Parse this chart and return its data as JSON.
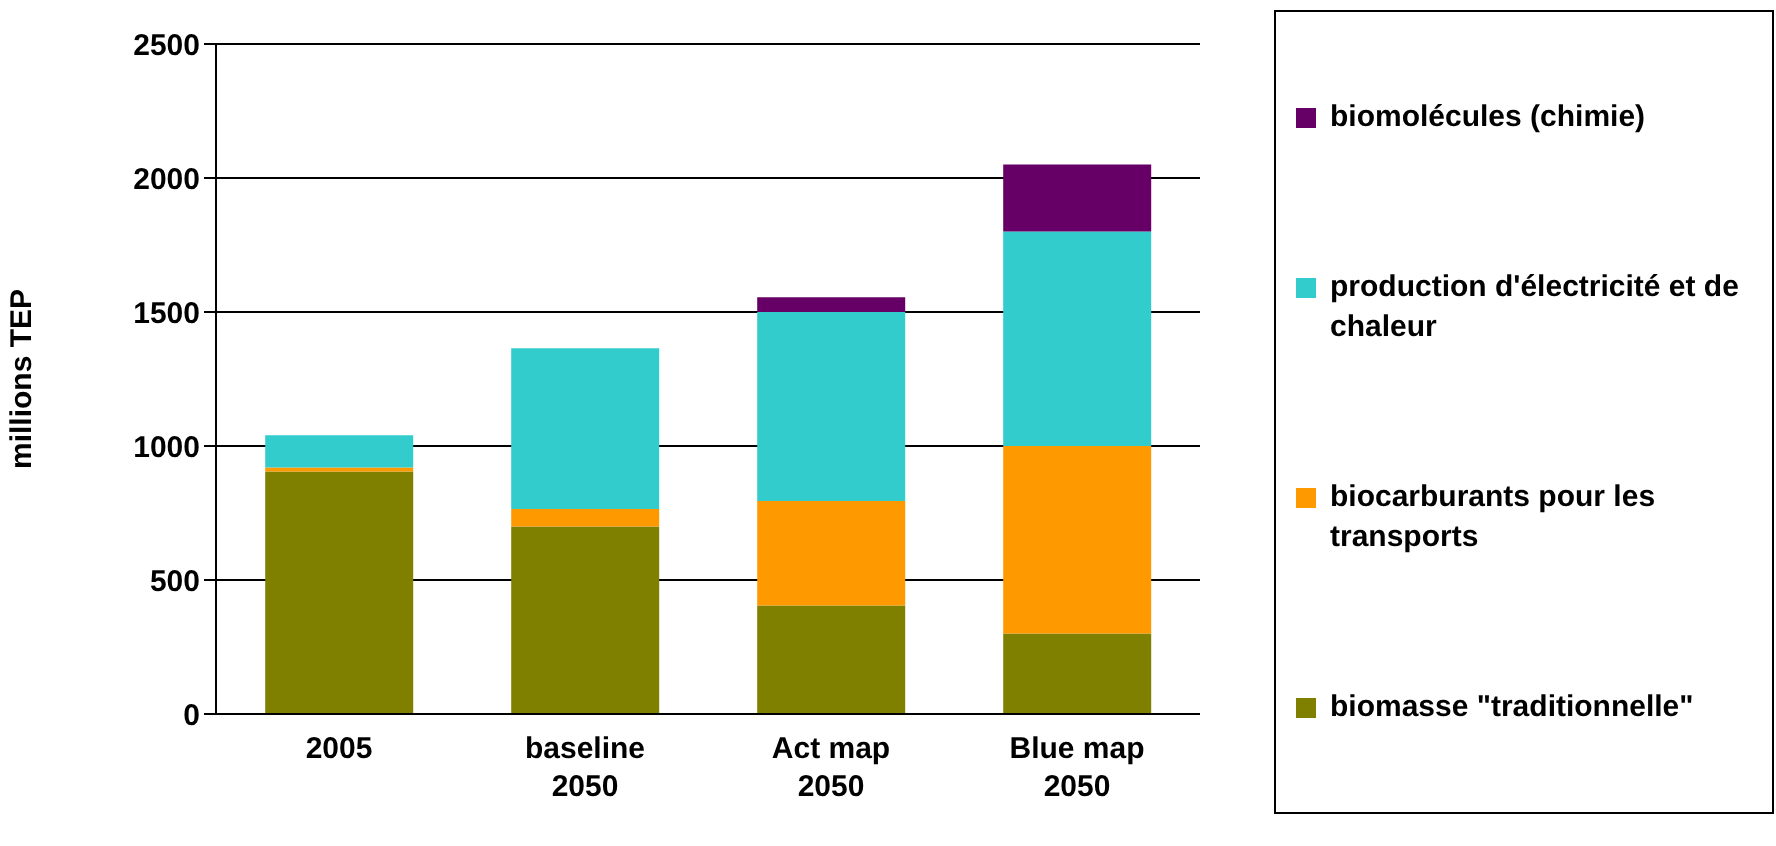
{
  "chart_data": {
    "type": "bar",
    "stacked": true,
    "ylabel": "millions TEP",
    "categories": [
      "2005",
      "baseline 2050",
      "Act map 2050",
      "Blue map 2050"
    ],
    "series": [
      {
        "name": "biomasse \"traditionnelle\"",
        "color": "#808000",
        "values": [
          905,
          700,
          405,
          300
        ]
      },
      {
        "name": "biocarburants pour les transports",
        "color": "#ff9900",
        "values": [
          15,
          65,
          390,
          700
        ]
      },
      {
        "name": "production d'électricité et de chaleur",
        "color": "#33cccc",
        "values": [
          120,
          600,
          705,
          800
        ]
      },
      {
        "name": "biomolécules (chimie)",
        "color": "#660066",
        "values": [
          0,
          0,
          55,
          250
        ]
      }
    ],
    "ylim": [
      0,
      2500
    ],
    "yticks": [
      0,
      500,
      1000,
      1500,
      2000,
      2500
    ],
    "grid": "y",
    "legend": "right"
  }
}
